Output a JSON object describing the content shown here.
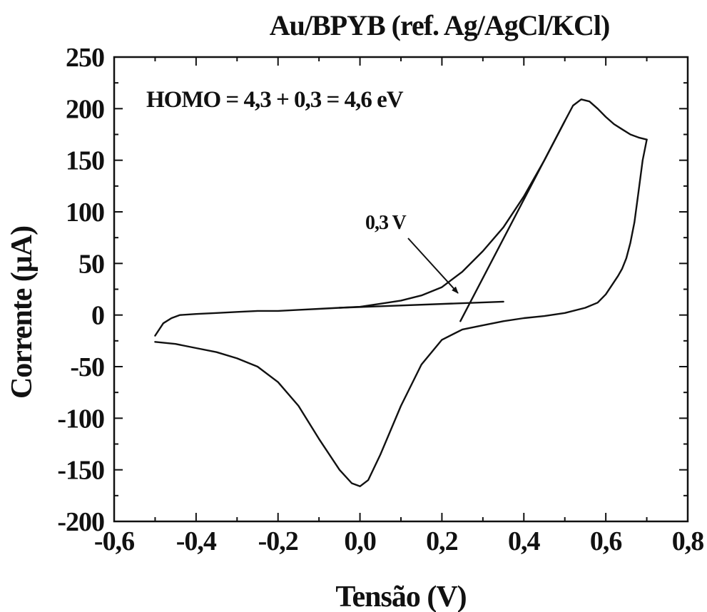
{
  "chart_data": {
    "type": "line",
    "title": "Au/BPYB (ref. Ag/AgCl/KCl)",
    "xlabel": "Tensão (V)",
    "ylabel": "Corrente (μA)",
    "xlim": [
      -0.6,
      0.8
    ],
    "ylim": [
      -200,
      250
    ],
    "xticks": [
      -0.6,
      -0.4,
      -0.2,
      0.0,
      0.2,
      0.4,
      0.6,
      0.8
    ],
    "xtick_labels": [
      "-0,6",
      "-0,4",
      "-0,2",
      "0,0",
      "0,2",
      "0,4",
      "0,6",
      "0,8"
    ],
    "yticks": [
      -200,
      -150,
      -100,
      -50,
      0,
      50,
      100,
      150,
      200,
      250
    ],
    "ytick_labels": [
      "-200",
      "-150",
      "-100",
      "-50",
      "0",
      "50",
      "100",
      "150",
      "200",
      "250"
    ],
    "grid": false,
    "annotations": [
      {
        "text": "HOMO = 4,3 + 0,3 = 4,6 eV"
      },
      {
        "text": "0,3 V"
      }
    ],
    "series": [
      {
        "x": [
          -0.5,
          -0.48,
          -0.46,
          -0.44,
          -0.4,
          -0.35,
          -0.3,
          -0.25,
          -0.2,
          -0.15,
          -0.1,
          -0.05,
          0.0,
          0.05,
          0.1,
          0.15,
          0.2,
          0.25,
          0.3,
          0.35,
          0.4,
          0.45,
          0.5,
          0.52,
          0.54,
          0.56,
          0.58,
          0.6,
          0.62,
          0.64,
          0.66,
          0.68,
          0.7
        ],
        "y": [
          -20,
          -8,
          -3,
          0,
          1,
          2,
          3,
          4,
          4,
          5,
          6,
          7,
          8,
          11,
          14,
          19,
          27,
          42,
          62,
          85,
          115,
          150,
          188,
          203,
          209,
          207,
          200,
          192,
          185,
          180,
          175,
          172,
          170
        ]
      },
      {
        "x": [
          0.7,
          0.69,
          0.68,
          0.67,
          0.66,
          0.65,
          0.64,
          0.63,
          0.62,
          0.6,
          0.58,
          0.55,
          0.5,
          0.45,
          0.4,
          0.35,
          0.3,
          0.25,
          0.2,
          0.15,
          0.1,
          0.05,
          0.02,
          0.0,
          -0.02,
          -0.05,
          -0.1,
          -0.15,
          -0.2,
          -0.25,
          -0.3,
          -0.35,
          -0.4,
          -0.45,
          -0.5
        ],
        "y": [
          170,
          150,
          120,
          90,
          70,
          55,
          45,
          38,
          32,
          20,
          12,
          7,
          2,
          -1,
          -3,
          -6,
          -10,
          -14,
          -24,
          -48,
          -88,
          -135,
          -160,
          -166,
          -163,
          -150,
          -120,
          -88,
          -65,
          -50,
          -42,
          -36,
          -32,
          -28,
          -26
        ]
      },
      {
        "x": [
          -0.05,
          0.35
        ],
        "y": [
          7,
          13
        ]
      },
      {
        "x": [
          0.245,
          0.5
        ],
        "y": [
          -6,
          188
        ]
      }
    ]
  }
}
